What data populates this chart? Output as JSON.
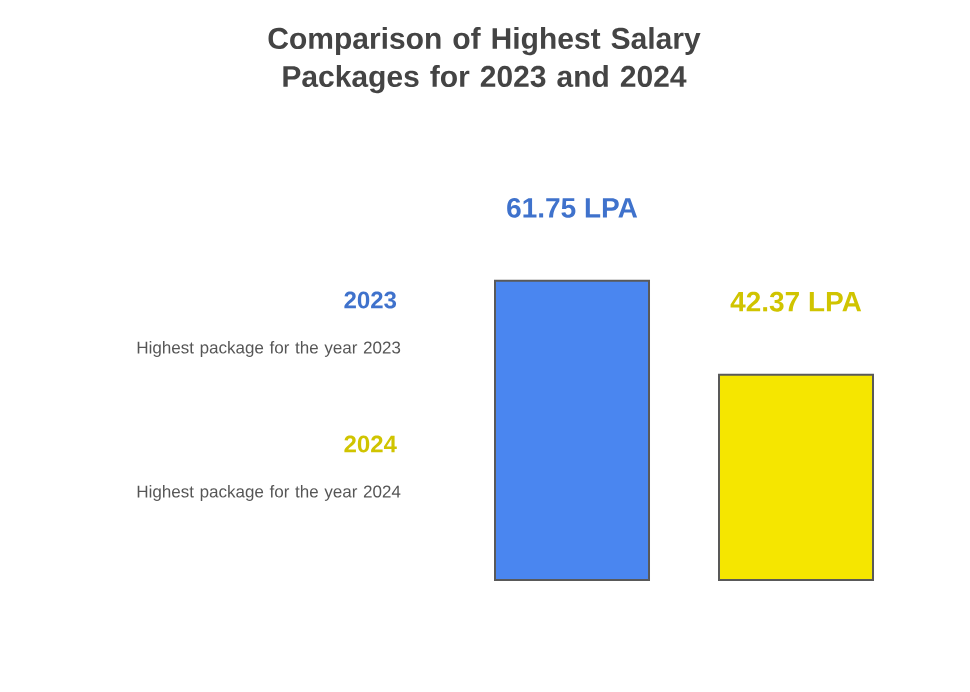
{
  "chart_data": {
    "type": "bar",
    "title": "Comparison of Highest Salary Packages for 2023 and 2024",
    "categories": [
      null,
      null
    ],
    "values": [
      61.75,
      42.37
    ],
    "colors": [
      "#4a86f0",
      "#f5e600"
    ],
    "value_labels": [
      "61.75 LPA",
      "42.37 LPA"
    ],
    "annotations": [
      "2023",
      "Highest package for the year 2023",
      "2024",
      "Highest package for the year 2024"
    ]
  }
}
